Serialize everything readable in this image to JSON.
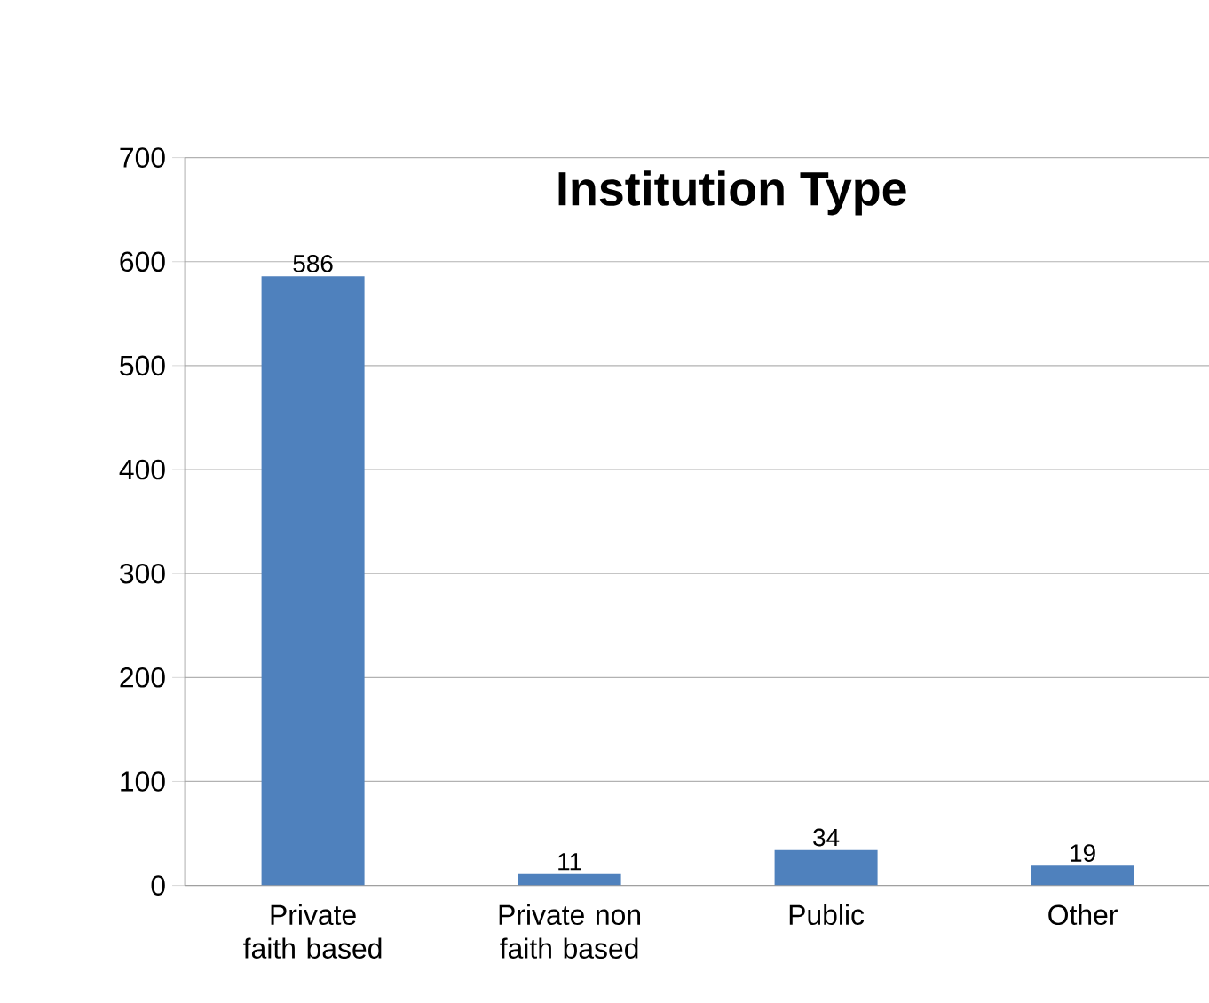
{
  "chart_data": {
    "type": "bar",
    "title": "Institution Type",
    "categories": [
      "Private faith based",
      "Private non faith based",
      "Public",
      "Other"
    ],
    "values": [
      586,
      11,
      34,
      19
    ],
    "color": "#4f81bd",
    "ylim": [
      0,
      700
    ],
    "yticks": [
      0,
      100,
      200,
      300,
      400,
      500,
      600,
      700
    ],
    "grid": "y",
    "data_labels": true
  }
}
